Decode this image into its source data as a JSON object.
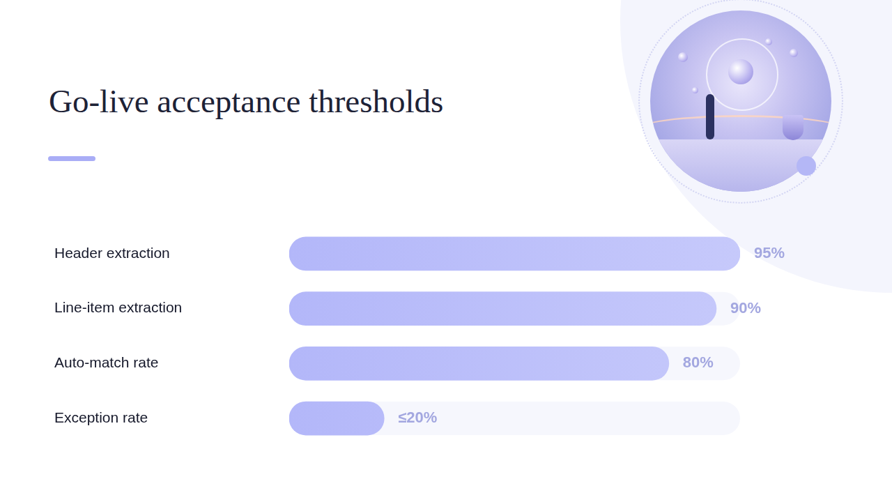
{
  "chart_data": {
    "type": "bar",
    "title": "Go-live acceptance thresholds",
    "orientation": "horizontal",
    "categories": [
      "Header extraction",
      "Line-item extraction",
      "Auto-match rate",
      "Exception rate"
    ],
    "values": [
      95,
      90,
      80,
      20
    ],
    "value_labels": [
      "95%",
      "90%",
      "80%",
      "≤20%"
    ],
    "color": "#b3b7f9",
    "xlim": [
      0,
      95
    ],
    "grid": false,
    "data_labels": true,
    "tick_labels": "y"
  }
}
